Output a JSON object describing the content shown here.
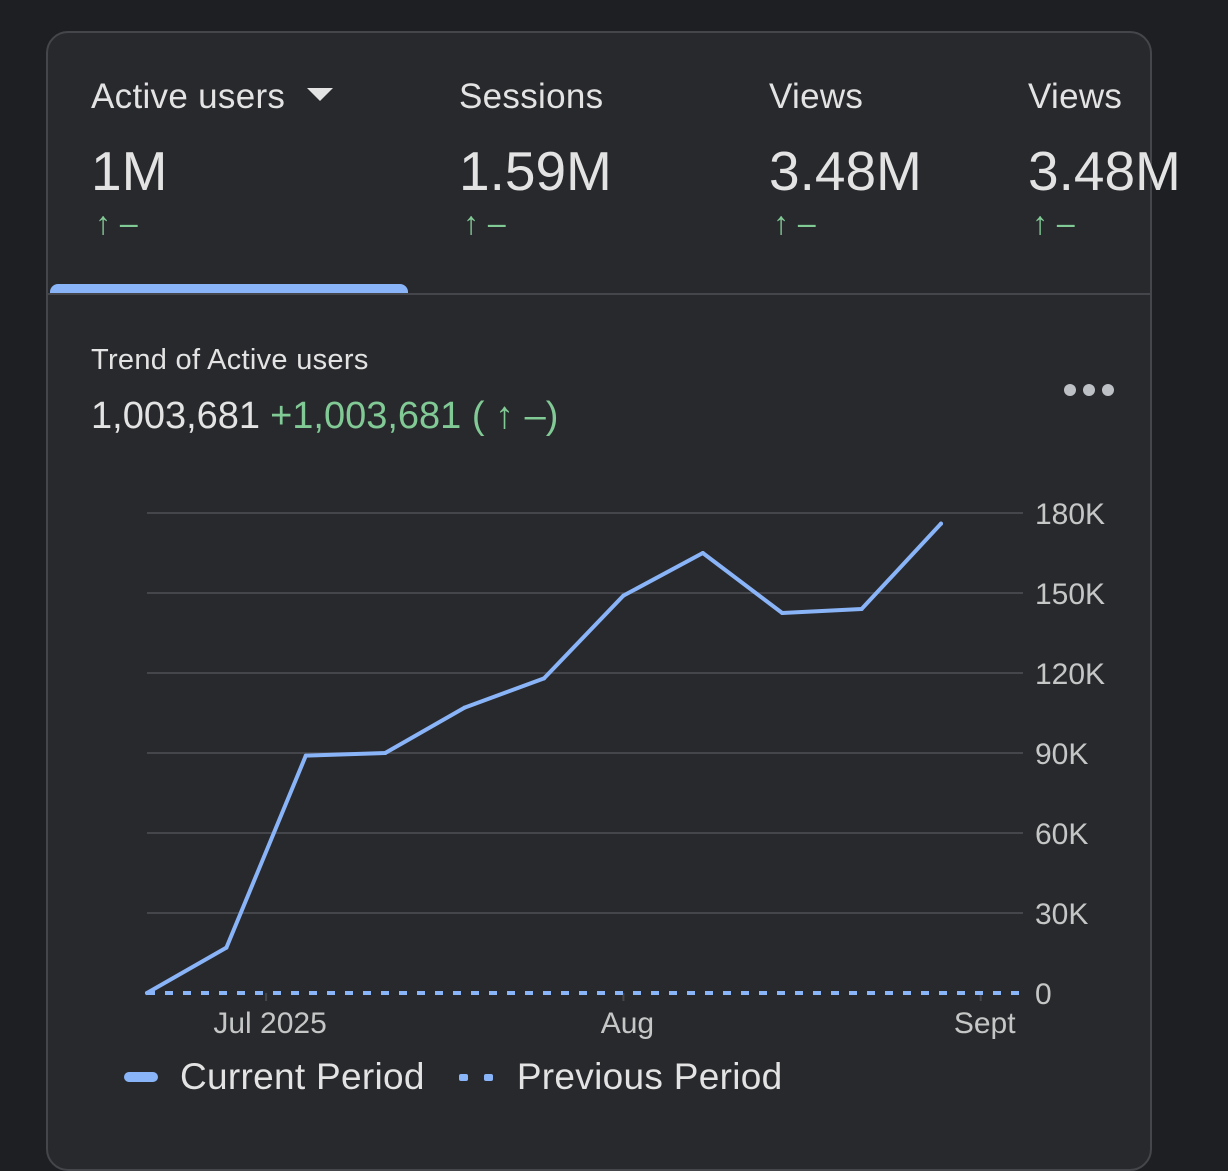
{
  "tabs": [
    {
      "label": "Active users",
      "value": "1M",
      "change_arrow": "↑",
      "change_text": "–",
      "selected": true,
      "has_dropdown": true
    },
    {
      "label": "Sessions",
      "value": "1.59M",
      "change_arrow": "↑",
      "change_text": "–"
    },
    {
      "label": "Views",
      "value": "3.48M",
      "change_arrow": "↑",
      "change_text": "–"
    },
    {
      "label": "Views",
      "value": "3.48M",
      "change_arrow": "↑",
      "change_text": "–"
    }
  ],
  "trend": {
    "title": "Trend of Active users",
    "total": "1,003,681",
    "delta": "+1,003,681 ( ↑ –)"
  },
  "more_icon": "more-horizontal-icon",
  "colors": {
    "background": "#1e1f22",
    "card": "#28292d",
    "accent": "#8ab4f8",
    "positive": "#81c995",
    "gridline": "#45464b"
  },
  "chart_data": {
    "type": "line",
    "title": "Trend of Active users",
    "x_tick_labels": [
      {
        "label": "Jul 2025",
        "index": 1.5
      },
      {
        "label": "Aug",
        "index": 6
      },
      {
        "label": "Sept",
        "index": 10.5
      }
    ],
    "y_ticks": [
      0,
      30000,
      60000,
      90000,
      120000,
      150000,
      180000
    ],
    "y_tick_labels": [
      "0",
      "30K",
      "60K",
      "90K",
      "120K",
      "150K",
      "180K"
    ],
    "ylim": [
      0,
      180000
    ],
    "x_count": 12,
    "y_axis_position": "right",
    "grid": true,
    "legend_position": "bottom-left",
    "series": [
      {
        "name": "Current Period",
        "style": "solid",
        "values": [
          0,
          17000,
          89000,
          90000,
          107000,
          118000,
          149000,
          165000,
          142500,
          144000,
          176000
        ]
      },
      {
        "name": "Previous Period",
        "style": "dotted",
        "values": [
          0,
          0,
          0,
          0,
          0,
          0,
          0,
          0,
          0,
          0,
          0,
          0
        ]
      }
    ]
  }
}
